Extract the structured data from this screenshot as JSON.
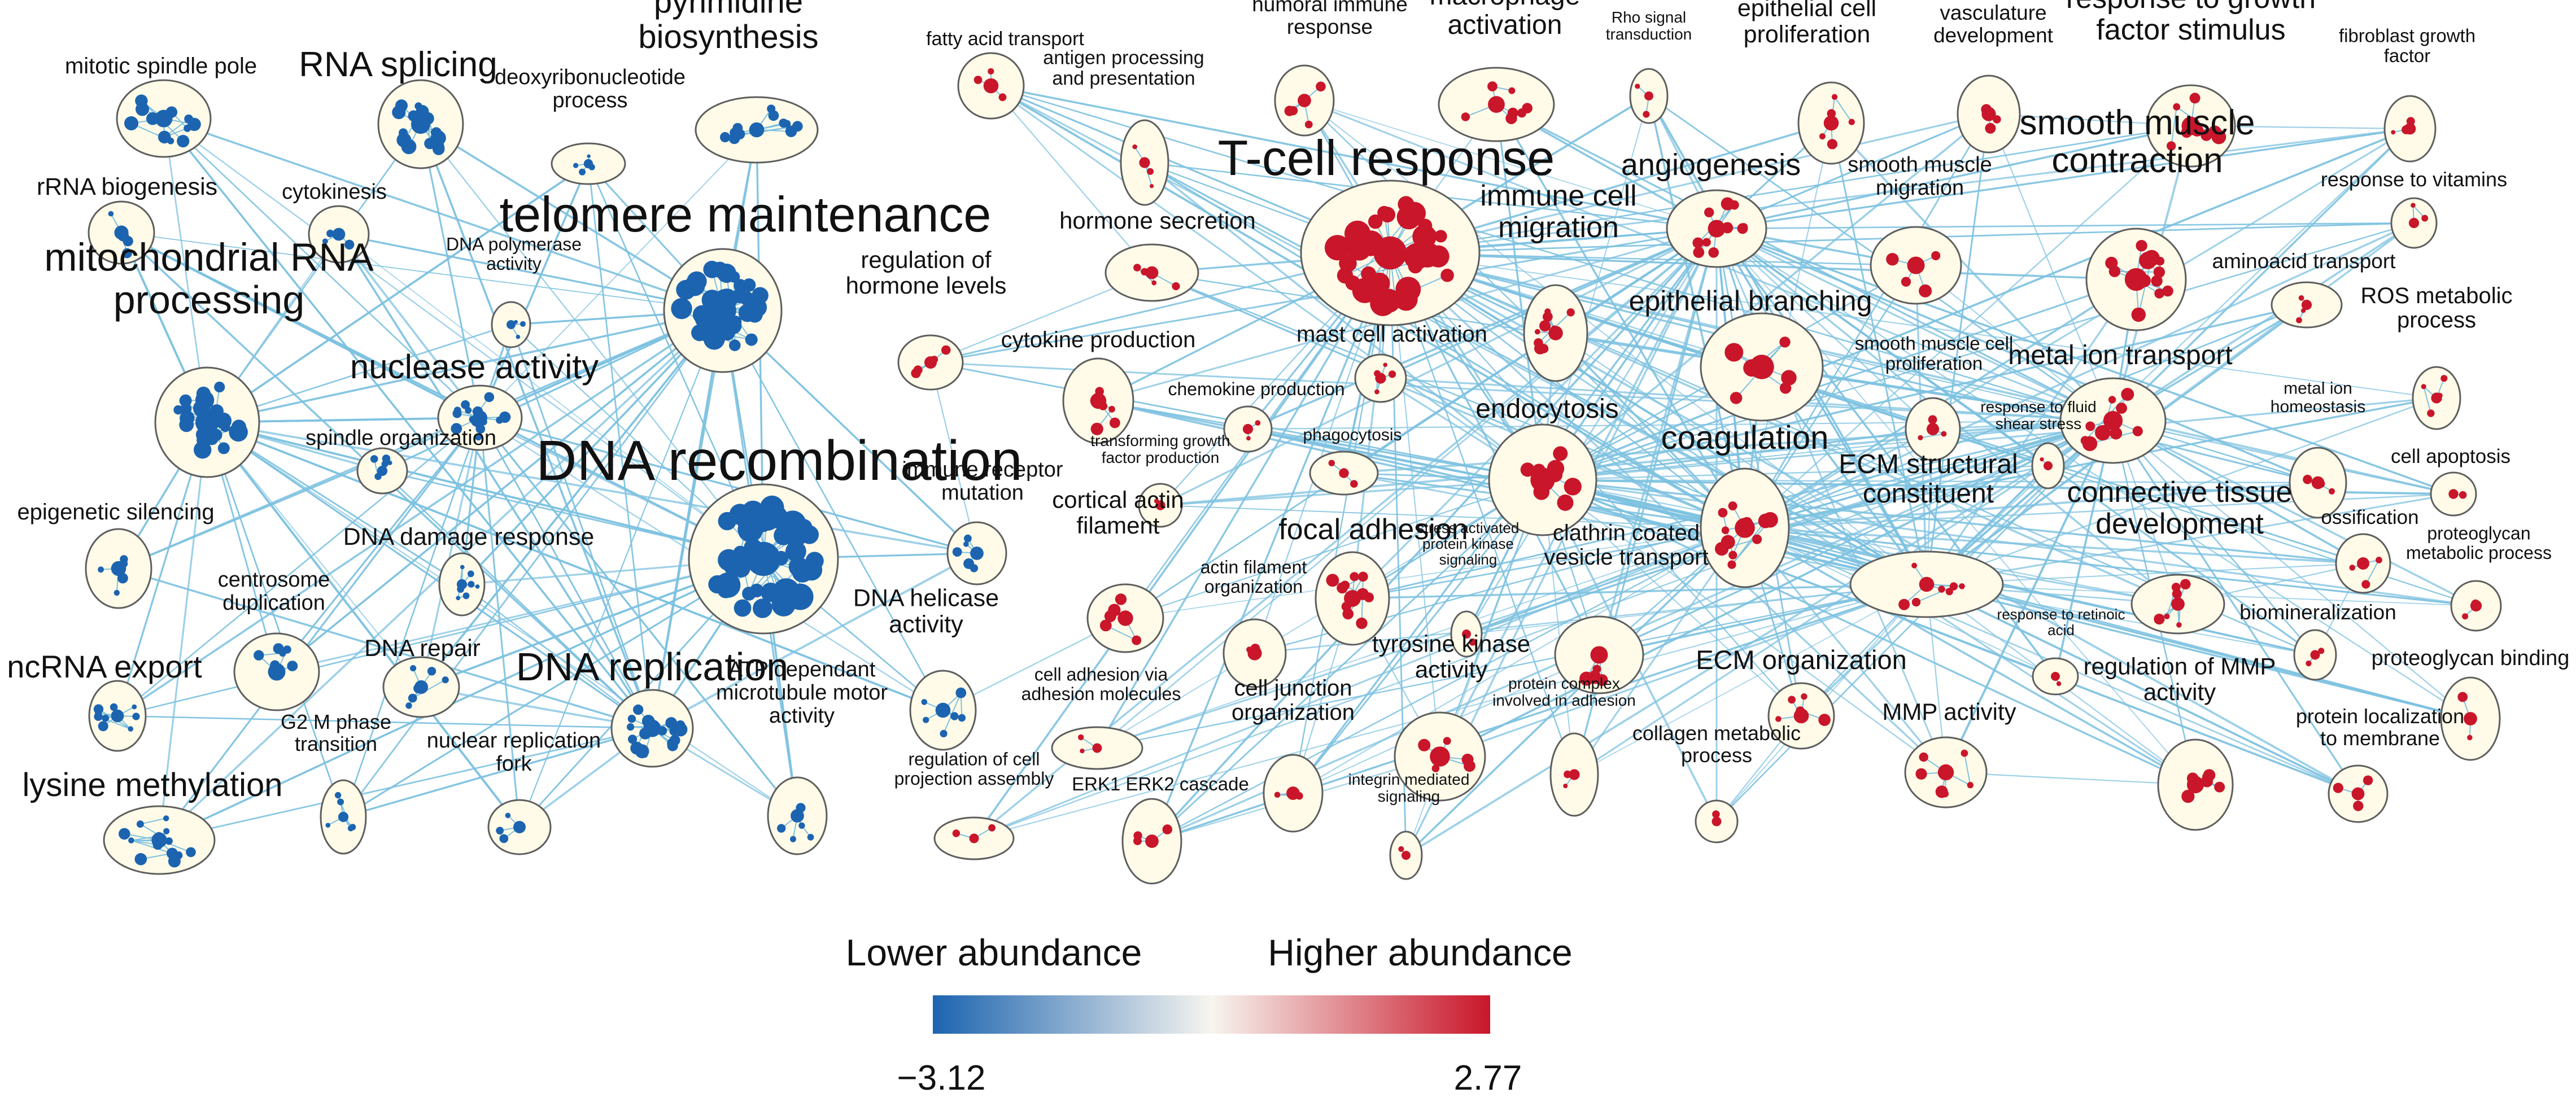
{
  "colors": {
    "low": "#1c64b0",
    "mid": "#f7f5ef",
    "high": "#c9162a",
    "cluster_fill": "#fffbe8",
    "cluster_stroke": "#5e5e5e",
    "edge": "#7ec1e0"
  },
  "clusters": [
    {
      "id": "mitotic-spindle-pole",
      "label": [
        "mitotic spindle pole"
      ],
      "tone": "low",
      "nodes": 12
    },
    {
      "id": "rna-splicing",
      "label": [
        "RNA splicing"
      ],
      "tone": "low",
      "nodes": 16
    },
    {
      "id": "deoxyribonucleotide-process",
      "label": [
        "deoxyribonucleotide",
        "process"
      ],
      "tone": "low",
      "nodes": 6
    },
    {
      "id": "pyrimidine-biosynthesis",
      "label": [
        "pyrimidine",
        "biosynthesis"
      ],
      "tone": "low",
      "nodes": 12
    },
    {
      "id": "rrna-biogenesis",
      "label": [
        "rRNA biogenesis"
      ],
      "tone": "low",
      "nodes": 5
    },
    {
      "id": "cytokinesis",
      "label": [
        "cytokinesis"
      ],
      "tone": "low",
      "nodes": 4
    },
    {
      "id": "telomere-maintenance",
      "label": [
        "telomere maintenance"
      ],
      "tone": "low",
      "nodes": 45
    },
    {
      "id": "dna-polymerase-activity",
      "label": [
        "DNA polymerase",
        "activity"
      ],
      "tone": "low",
      "nodes": 4
    },
    {
      "id": "mitochondrial-rna-processing",
      "label": [
        "mitochondrial RNA",
        "processing"
      ],
      "tone": "low",
      "nodes": 22
    },
    {
      "id": "nuclease-activity",
      "label": [
        "nuclease activity"
      ],
      "tone": "low",
      "nodes": 16
    },
    {
      "id": "spindle-organization",
      "label": [
        "spindle organization"
      ],
      "tone": "low",
      "nodes": 6
    },
    {
      "id": "dna-recombination",
      "label": [
        "DNA recombination"
      ],
      "tone": "low",
      "nodes": 45
    },
    {
      "id": "epigenetic-silencing",
      "label": [
        "epigenetic silencing"
      ],
      "tone": "low",
      "nodes": 6
    },
    {
      "id": "dna-damage-response",
      "label": [
        "DNA damage response"
      ],
      "tone": "low",
      "nodes": 8
    },
    {
      "id": "centrosome-duplication",
      "label": [
        "centrosome",
        "duplication"
      ],
      "tone": "low",
      "nodes": 7
    },
    {
      "id": "dna-repair",
      "label": [
        "DNA repair"
      ],
      "tone": "low",
      "nodes": 7
    },
    {
      "id": "ncrna-export",
      "label": [
        "ncRNA export"
      ],
      "tone": "low",
      "nodes": 10
    },
    {
      "id": "dna-replication",
      "label": [
        "DNA replication"
      ],
      "tone": "low",
      "nodes": 18
    },
    {
      "id": "immune-receptor-mutation",
      "label": [
        "immune receptor",
        "mutation"
      ],
      "tone": "low",
      "nodes": 6
    },
    {
      "id": "dna-helicase-activity",
      "label": [
        "DNA helicase",
        "activity"
      ],
      "tone": "low",
      "nodes": 7
    },
    {
      "id": "atp-dependant-microtubule-motor-activity",
      "label": [
        "ATP dependant",
        "microtubule motor",
        "activity"
      ],
      "tone": "low",
      "nodes": 6
    },
    {
      "id": "g2-m-phase-transition",
      "label": [
        "G2 M phase",
        "transition"
      ],
      "tone": "low",
      "nodes": 6
    },
    {
      "id": "nuclear-replication-fork",
      "label": [
        "nuclear replication",
        "fork"
      ],
      "tone": "low",
      "nodes": 5
    },
    {
      "id": "lysine-methylation",
      "label": [
        "lysine methylation"
      ],
      "tone": "low",
      "nodes": 14
    },
    {
      "id": "fatty-acid-transport",
      "label": [
        "fatty acid transport"
      ],
      "tone": "high",
      "nodes": 4
    },
    {
      "id": "antigen-processing-and-presentation",
      "label": [
        "antigen processing",
        "and presentation"
      ],
      "tone": "high",
      "nodes": 4
    },
    {
      "id": "humoral-immune-response",
      "label": [
        "humoral immune",
        "response"
      ],
      "tone": "high",
      "nodes": 5
    },
    {
      "id": "macrophage-activation",
      "label": [
        "macrophage",
        "activation"
      ],
      "tone": "high",
      "nodes": 8
    },
    {
      "id": "rho-signal-transduction",
      "label": [
        "Rho signal",
        "transduction"
      ],
      "tone": "high",
      "nodes": 3
    },
    {
      "id": "epithelial-cell-proliferation",
      "label": [
        "epithelial cell",
        "proliferation"
      ],
      "tone": "high",
      "nodes": 6
    },
    {
      "id": "vasculature-development",
      "label": [
        "vasculature",
        "development"
      ],
      "tone": "high",
      "nodes": 5
    },
    {
      "id": "response-to-growth-factor-stimulus",
      "label": [
        "response to growth",
        "factor stimulus"
      ],
      "tone": "high",
      "nodes": 10
    },
    {
      "id": "fibroblast-growth-factor",
      "label": [
        "fibroblast growth",
        "factor"
      ],
      "tone": "high",
      "nodes": 4
    },
    {
      "id": "hormone-secretion",
      "label": [
        "hormone secretion"
      ],
      "tone": "high",
      "nodes": 5
    },
    {
      "id": "t-cell-response",
      "label": [
        "T-cell response"
      ],
      "tone": "high",
      "nodes": 30
    },
    {
      "id": "angiogenesis",
      "label": [
        "angiogenesis"
      ],
      "tone": "high",
      "nodes": 12
    },
    {
      "id": "smooth-muscle-migration",
      "label": [
        "smooth muscle",
        "migration"
      ],
      "tone": "high",
      "nodes": 5
    },
    {
      "id": "smooth-muscle-contraction",
      "label": [
        "smooth muscle",
        "contraction"
      ],
      "tone": "high",
      "nodes": 14
    },
    {
      "id": "response-to-vitamins",
      "label": [
        "response to vitamins"
      ],
      "tone": "high",
      "nodes": 3
    },
    {
      "id": "regulation-of-hormone-levels",
      "label": [
        "regulation of",
        "hormone levels"
      ],
      "tone": "high",
      "nodes": 5
    },
    {
      "id": "immune-cell-migration",
      "label": [
        "immune cell",
        "migration"
      ],
      "tone": "high",
      "nodes": 10
    },
    {
      "id": "epithelial-branching",
      "label": [
        "epithelial branching"
      ],
      "tone": "high",
      "nodes": 7
    },
    {
      "id": "aminoacid-transport",
      "label": [
        "aminoacid transport"
      ],
      "tone": "high",
      "nodes": 4
    },
    {
      "id": "cytokine-production",
      "label": [
        "cytokine production"
      ],
      "tone": "high",
      "nodes": 6
    },
    {
      "id": "mast-cell-activation",
      "label": [
        "mast cell activation"
      ],
      "tone": "high",
      "nodes": 5
    },
    {
      "id": "ros-metabolic-process",
      "label": [
        "ROS metabolic",
        "process"
      ],
      "tone": "high",
      "nodes": 5
    },
    {
      "id": "chemokine-production",
      "label": [
        "chemokine production"
      ],
      "tone": "high",
      "nodes": 3
    },
    {
      "id": "smooth-muscle-cell-proliferation",
      "label": [
        "smooth muscle cell",
        "proliferation"
      ],
      "tone": "high",
      "nodes": 4
    },
    {
      "id": "metal-ion-transport",
      "label": [
        "metal ion transport"
      ],
      "tone": "high",
      "nodes": 10
    },
    {
      "id": "endocytosis",
      "label": [
        "endocytosis"
      ],
      "tone": "high",
      "nodes": 9
    },
    {
      "id": "transforming-growth-factor-production",
      "label": [
        "transforming growth",
        "factor production"
      ],
      "tone": "high",
      "nodes": 2
    },
    {
      "id": "phagocytosis",
      "label": [
        "phagocytosis"
      ],
      "tone": "high",
      "nodes": 3
    },
    {
      "id": "coagulation",
      "label": [
        "coagulation"
      ],
      "tone": "high",
      "nodes": 12
    },
    {
      "id": "response-to-fluid-shear-stress",
      "label": [
        "response to fluid",
        "shear stress"
      ],
      "tone": "high",
      "nodes": 2
    },
    {
      "id": "metal-ion-homeostasis",
      "label": [
        "metal ion",
        "homeostasis"
      ],
      "tone": "high",
      "nodes": 4
    },
    {
      "id": "cell-apoptosis",
      "label": [
        "cell apoptosis"
      ],
      "tone": "high",
      "nodes": 2
    },
    {
      "id": "focal-adhesion",
      "label": [
        "focal adhesion"
      ],
      "tone": "high",
      "nodes": 12
    },
    {
      "id": "ecm-structural-constituent",
      "label": [
        "ECM structural",
        "constituent"
      ],
      "tone": "high",
      "nodes": 9
    },
    {
      "id": "connective-tissue-development",
      "label": [
        "connective tissue",
        "development"
      ],
      "tone": "high",
      "nodes": 9
    },
    {
      "id": "ossification",
      "label": [
        "ossification"
      ],
      "tone": "high",
      "nodes": 4
    },
    {
      "id": "cortical-actin-filament",
      "label": [
        "cortical actin",
        "filament"
      ],
      "tone": "high",
      "nodes": 6
    },
    {
      "id": "stress-activated-protein-kinase-signaling",
      "label": [
        "stress activated",
        "protein kinase",
        "signaling"
      ],
      "tone": "high",
      "nodes": 2
    },
    {
      "id": "clathrin-coated-vesicle-transport",
      "label": [
        "clathrin coated",
        "vesicle transport"
      ],
      "tone": "high",
      "nodes": 6
    },
    {
      "id": "proteoglycan-metabolic-process",
      "label": [
        "proteoglycan",
        "metabolic process"
      ],
      "tone": "high",
      "nodes": 3
    },
    {
      "id": "actin-filament-organization",
      "label": [
        "actin filament",
        "organization"
      ],
      "tone": "high",
      "nodes": 3
    },
    {
      "id": "response-to-retinoic-acid",
      "label": [
        "response to retinoic",
        "acid"
      ],
      "tone": "high",
      "nodes": 2
    },
    {
      "id": "biomineralization",
      "label": [
        "biomineralization"
      ],
      "tone": "high",
      "nodes": 3
    },
    {
      "id": "ecm-organization",
      "label": [
        "ECM organization"
      ],
      "tone": "high",
      "nodes": 6
    },
    {
      "id": "cell-adhesion-via-adhesion-molecules",
      "label": [
        "cell adhesion via",
        "adhesion molecules"
      ],
      "tone": "high",
      "nodes": 3
    },
    {
      "id": "tyrosine-kinase-activity",
      "label": [
        "tyrosine kinase",
        "activity"
      ],
      "tone": "high",
      "nodes": 6
    },
    {
      "id": "cell-junction-organization",
      "label": [
        "cell junction",
        "organization"
      ],
      "tone": "high",
      "nodes": 3
    },
    {
      "id": "protein-complex-involved-in-adhesion",
      "label": [
        "protein complex",
        "involved in adhesion"
      ],
      "tone": "high",
      "nodes": 3
    },
    {
      "id": "mmp-activity",
      "label": [
        "MMP activity"
      ],
      "tone": "high",
      "nodes": 7
    },
    {
      "id": "regulation-of-mmp-activity",
      "label": [
        "regulation of MMP",
        "activity"
      ],
      "tone": "high",
      "nodes": 8
    },
    {
      "id": "proteoglycan-binding",
      "label": [
        "proteoglycan binding"
      ],
      "tone": "high",
      "nodes": 3
    },
    {
      "id": "regulation-of-cell-projection-assembly",
      "label": [
        "regulation of cell",
        "projection assembly"
      ],
      "tone": "high",
      "nodes": 3
    },
    {
      "id": "erk1-erk2-cascade",
      "label": [
        "ERK1 ERK2 cascade"
      ],
      "tone": "high",
      "nodes": 4
    },
    {
      "id": "collagen-metabolic-process",
      "label": [
        "collagen metabolic",
        "process"
      ],
      "tone": "high",
      "nodes": 2
    },
    {
      "id": "integrin-mediated-signaling",
      "label": [
        "integrin mediated",
        "signaling"
      ],
      "tone": "high",
      "nodes": 2
    },
    {
      "id": "protein-localization-to-membrane",
      "label": [
        "protein localization",
        "to membrane"
      ],
      "tone": "high",
      "nodes": 4
    }
  ],
  "legend": {
    "low_label": "Lower abundance",
    "high_label": "Higher abundance",
    "min_value": "−3.12",
    "max_value": "2.77"
  }
}
